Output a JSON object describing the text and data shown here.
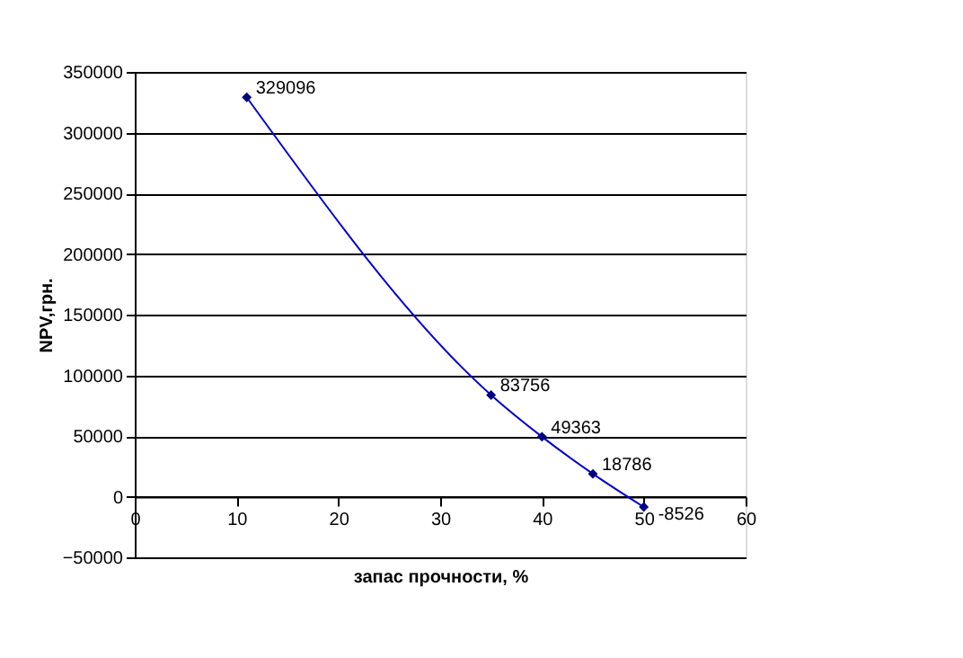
{
  "chart_data": {
    "type": "line",
    "xlabel": "запас прочности, %",
    "ylabel": "NPV,грн.",
    "x": [
      11,
      35,
      40,
      45,
      50
    ],
    "series": [
      {
        "color": "#0000cc",
        "values": [
          329096,
          83756,
          49363,
          18786,
          -8526
        ]
      }
    ],
    "xlim": [
      0,
      60
    ],
    "xticks": [
      0,
      10,
      20,
      30,
      40,
      50,
      60
    ],
    "ylim": [
      -50000,
      350000
    ],
    "yticks": [
      -50000,
      0,
      50000,
      100000,
      150000,
      200000,
      250000,
      300000,
      350000
    ],
    "grid": "y",
    "marker": "diamond",
    "line_style": "solid",
    "data_labels": true
  }
}
